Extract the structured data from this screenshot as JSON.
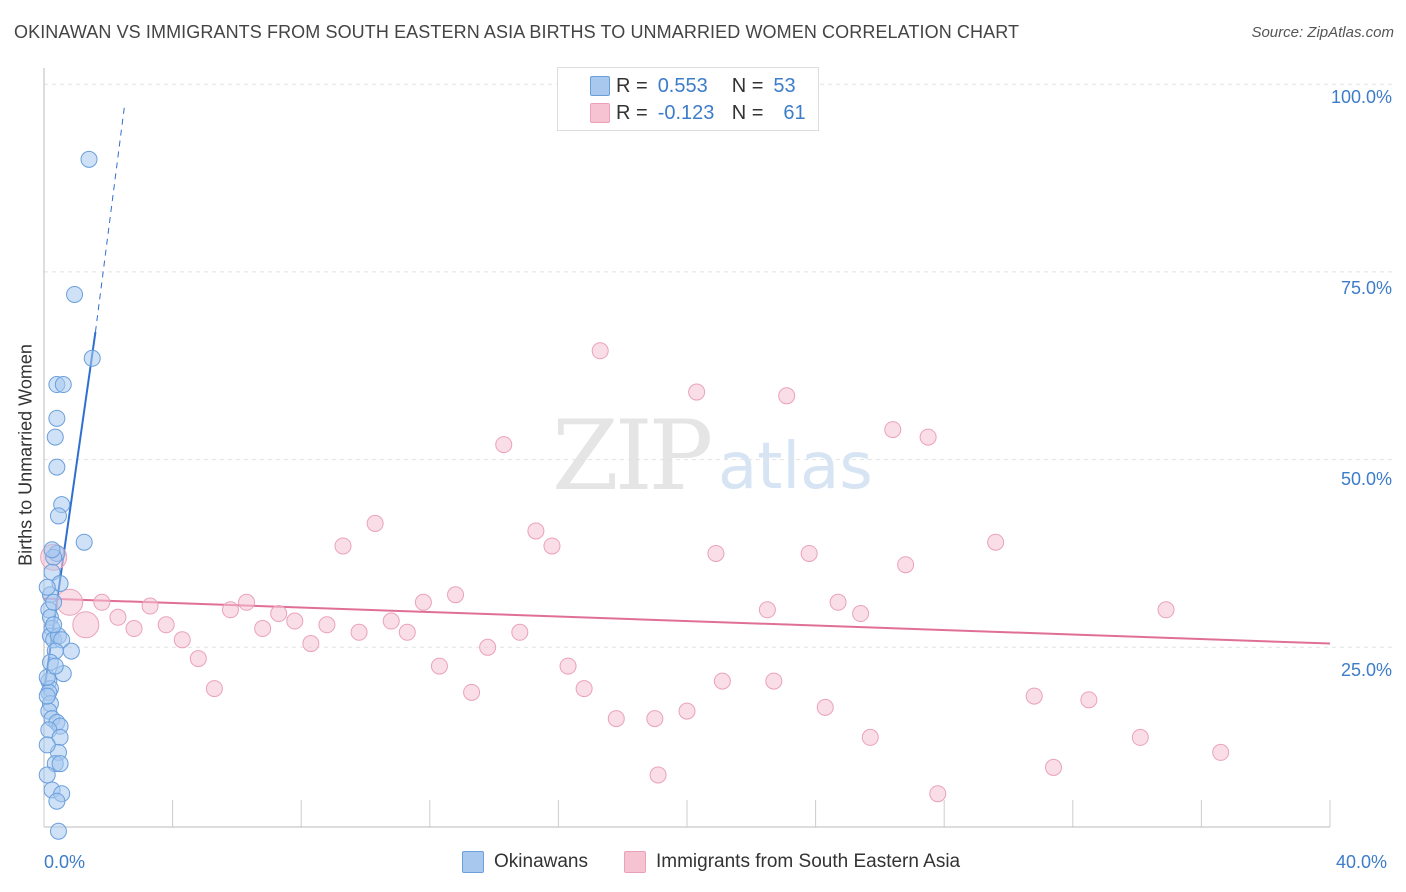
{
  "title": "OKINAWAN VS IMMIGRANTS FROM SOUTH EASTERN ASIA BIRTHS TO UNMARRIED WOMEN CORRELATION CHART",
  "source": "Source: ZipAtlas.com",
  "watermark": {
    "zip": "ZIP",
    "atlas": "atlas"
  },
  "legend_top": {
    "r_label": "R =",
    "n_label": "N =",
    "series": [
      {
        "r": "0.553",
        "n": "53"
      },
      {
        "r": "-0.123",
        "n": "61"
      }
    ]
  },
  "colors": {
    "blue_fill": "#a8c8ee",
    "blue_stroke": "#6a9fdc",
    "blue_line": "#2f6fd0",
    "pink_fill": "#f6c3d3",
    "pink_stroke": "#eaa2b8",
    "pink_line": "#e06f98",
    "axis_text": "#3d7cc9"
  },
  "chart_data": {
    "type": "scatter",
    "ylabel": "Births to Unmarried Women",
    "xlim": [
      0,
      40
    ],
    "ylim": [
      0,
      100
    ],
    "x_tick_labels": [
      "0.0%",
      "40.0%"
    ],
    "y_tick_labels": [
      "100.0%",
      "75.0%",
      "50.0%",
      "25.0%"
    ],
    "y_ticks": [
      100,
      75,
      50,
      25
    ],
    "series": [
      {
        "name": "Okinawans",
        "color": "#a8c8ee",
        "points": [
          {
            "x": 1.4,
            "y": 90.0
          },
          {
            "x": 0.95,
            "y": 72.0
          },
          {
            "x": 1.5,
            "y": 63.5
          },
          {
            "x": 0.4,
            "y": 60.0
          },
          {
            "x": 0.6,
            "y": 60.0
          },
          {
            "x": 0.4,
            "y": 55.5
          },
          {
            "x": 0.35,
            "y": 53.0
          },
          {
            "x": 0.4,
            "y": 49.0
          },
          {
            "x": 0.55,
            "y": 44.0
          },
          {
            "x": 0.45,
            "y": 42.5
          },
          {
            "x": 1.25,
            "y": 39.0
          },
          {
            "x": 0.4,
            "y": 37.5
          },
          {
            "x": 0.3,
            "y": 37.0
          },
          {
            "x": 0.25,
            "y": 35.0
          },
          {
            "x": 0.2,
            "y": 32.0
          },
          {
            "x": 0.15,
            "y": 30.0
          },
          {
            "x": 0.2,
            "y": 29.0
          },
          {
            "x": 0.25,
            "y": 27.5
          },
          {
            "x": 0.2,
            "y": 26.5
          },
          {
            "x": 0.3,
            "y": 26.0
          },
          {
            "x": 0.45,
            "y": 26.5
          },
          {
            "x": 0.55,
            "y": 26.0
          },
          {
            "x": 0.35,
            "y": 24.5
          },
          {
            "x": 0.85,
            "y": 24.5
          },
          {
            "x": 0.2,
            "y": 23.0
          },
          {
            "x": 0.6,
            "y": 21.5
          },
          {
            "x": 0.15,
            "y": 20.5
          },
          {
            "x": 0.2,
            "y": 19.5
          },
          {
            "x": 0.15,
            "y": 19.0
          },
          {
            "x": 0.2,
            "y": 17.5
          },
          {
            "x": 0.15,
            "y": 16.5
          },
          {
            "x": 0.25,
            "y": 15.5
          },
          {
            "x": 0.4,
            "y": 15.0
          },
          {
            "x": 0.5,
            "y": 14.5
          },
          {
            "x": 0.15,
            "y": 14.0
          },
          {
            "x": 0.5,
            "y": 13.0
          },
          {
            "x": 0.45,
            "y": 11.0
          },
          {
            "x": 0.35,
            "y": 9.5
          },
          {
            "x": 0.5,
            "y": 9.5
          },
          {
            "x": 0.25,
            "y": 6.0
          },
          {
            "x": 0.55,
            "y": 5.5
          },
          {
            "x": 0.4,
            "y": 4.5
          },
          {
            "x": 0.45,
            "y": 0.5
          },
          {
            "x": 0.1,
            "y": 21.0
          },
          {
            "x": 0.1,
            "y": 18.5
          },
          {
            "x": 0.1,
            "y": 12.0
          },
          {
            "x": 0.1,
            "y": 8.0
          },
          {
            "x": 0.3,
            "y": 31.0
          },
          {
            "x": 0.5,
            "y": 33.5
          },
          {
            "x": 0.3,
            "y": 28.0
          },
          {
            "x": 0.35,
            "y": 22.5
          },
          {
            "x": 0.1,
            "y": 33.0
          },
          {
            "x": 0.25,
            "y": 38.0
          }
        ],
        "trend": {
          "x0": 0.0,
          "y0": 19.0,
          "x1": 1.6,
          "y1": 67.0,
          "dash_x1": 2.5,
          "dash_y1": 97.0
        }
      },
      {
        "name": "Immigrants from South Eastern Asia",
        "color": "#f6c3d3",
        "points": [
          {
            "x": 0.3,
            "y": 37.0,
            "big": true
          },
          {
            "x": 0.8,
            "y": 31.0,
            "big": true
          },
          {
            "x": 1.3,
            "y": 28.0,
            "big": true
          },
          {
            "x": 1.8,
            "y": 31.0
          },
          {
            "x": 2.3,
            "y": 29.0
          },
          {
            "x": 2.8,
            "y": 27.5
          },
          {
            "x": 3.3,
            "y": 30.5
          },
          {
            "x": 3.8,
            "y": 28.0
          },
          {
            "x": 4.3,
            "y": 26.0
          },
          {
            "x": 4.8,
            "y": 23.5
          },
          {
            "x": 5.3,
            "y": 19.5
          },
          {
            "x": 5.8,
            "y": 30.0
          },
          {
            "x": 6.3,
            "y": 31.0
          },
          {
            "x": 6.8,
            "y": 27.5
          },
          {
            "x": 7.3,
            "y": 29.5
          },
          {
            "x": 7.8,
            "y": 28.5
          },
          {
            "x": 8.3,
            "y": 25.5
          },
          {
            "x": 8.8,
            "y": 28.0
          },
          {
            "x": 9.3,
            "y": 38.5
          },
          {
            "x": 9.8,
            "y": 27.0
          },
          {
            "x": 10.3,
            "y": 41.5
          },
          {
            "x": 10.8,
            "y": 28.5
          },
          {
            "x": 11.3,
            "y": 27.0
          },
          {
            "x": 11.8,
            "y": 31.0
          },
          {
            "x": 12.3,
            "y": 22.5
          },
          {
            "x": 12.8,
            "y": 32.0
          },
          {
            "x": 13.3,
            "y": 19.0
          },
          {
            "x": 13.8,
            "y": 25.0
          },
          {
            "x": 14.3,
            "y": 52.0
          },
          {
            "x": 14.8,
            "y": 27.0
          },
          {
            "x": 15.3,
            "y": 40.5
          },
          {
            "x": 15.8,
            "y": 38.5
          },
          {
            "x": 16.3,
            "y": 22.5
          },
          {
            "x": 16.8,
            "y": 19.5
          },
          {
            "x": 17.3,
            "y": 64.5
          },
          {
            "x": 17.8,
            "y": 15.5
          },
          {
            "x": 19.0,
            "y": 15.5
          },
          {
            "x": 19.1,
            "y": 8.0
          },
          {
            "x": 20.0,
            "y": 16.5
          },
          {
            "x": 20.3,
            "y": 59.0
          },
          {
            "x": 20.9,
            "y": 37.5
          },
          {
            "x": 21.1,
            "y": 20.5
          },
          {
            "x": 22.5,
            "y": 30.0
          },
          {
            "x": 22.7,
            "y": 20.5
          },
          {
            "x": 23.1,
            "y": 58.5
          },
          {
            "x": 23.8,
            "y": 37.5
          },
          {
            "x": 24.3,
            "y": 17.0
          },
          {
            "x": 24.7,
            "y": 31.0
          },
          {
            "x": 25.4,
            "y": 29.5
          },
          {
            "x": 25.7,
            "y": 13.0
          },
          {
            "x": 26.4,
            "y": 54.0
          },
          {
            "x": 26.8,
            "y": 36.0
          },
          {
            "x": 27.5,
            "y": 53.0
          },
          {
            "x": 27.8,
            "y": 5.5
          },
          {
            "x": 29.6,
            "y": 39.0
          },
          {
            "x": 30.8,
            "y": 18.5
          },
          {
            "x": 31.4,
            "y": 9.0
          },
          {
            "x": 32.5,
            "y": 18.0
          },
          {
            "x": 34.1,
            "y": 13.0
          },
          {
            "x": 34.9,
            "y": 30.0
          },
          {
            "x": 36.6,
            "y": 11.0
          }
        ],
        "trend": {
          "x0": 0.0,
          "y0": 31.5,
          "x1": 40.0,
          "y1": 25.5
        }
      }
    ]
  },
  "bottom_legend": [
    {
      "label": "Okinawans"
    },
    {
      "label": "Immigrants from South Eastern Asia"
    }
  ]
}
